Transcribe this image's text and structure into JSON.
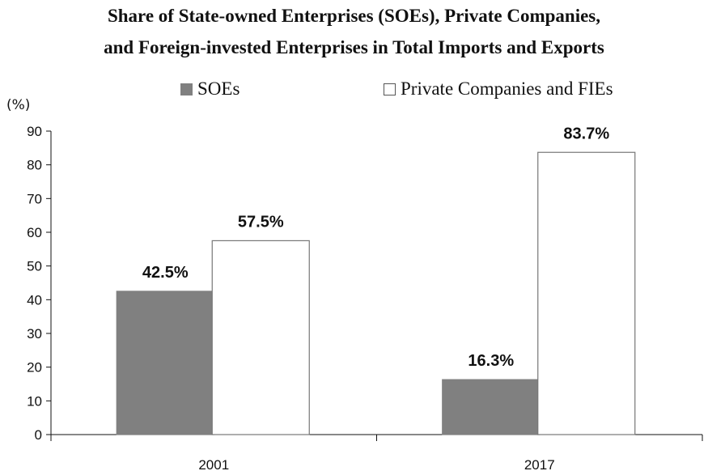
{
  "chart_data": {
    "type": "bar",
    "title": "Share of State-owned Enterprises (SOEs), Private Companies,",
    "subtitle": "and Foreign-invested Enterprises in Total Imports and Exports",
    "unit_label": "(%)",
    "categories": [
      "2001",
      "2017"
    ],
    "series": [
      {
        "name": "SOEs",
        "values": [
          42.5,
          16.3
        ],
        "labels": [
          "42.5%",
          "16.3%"
        ],
        "color": "#808080"
      },
      {
        "name": "Private Companies and FIEs",
        "values": [
          57.5,
          83.7
        ],
        "labels": [
          "57.5%",
          "83.7%"
        ],
        "color": "#ffffff"
      }
    ],
    "ylim": [
      0,
      90
    ],
    "yticks": [
      "0",
      "10",
      "20",
      "30",
      "40",
      "50",
      "60",
      "70",
      "80",
      "90"
    ],
    "grid": false,
    "legend_position": "top"
  }
}
